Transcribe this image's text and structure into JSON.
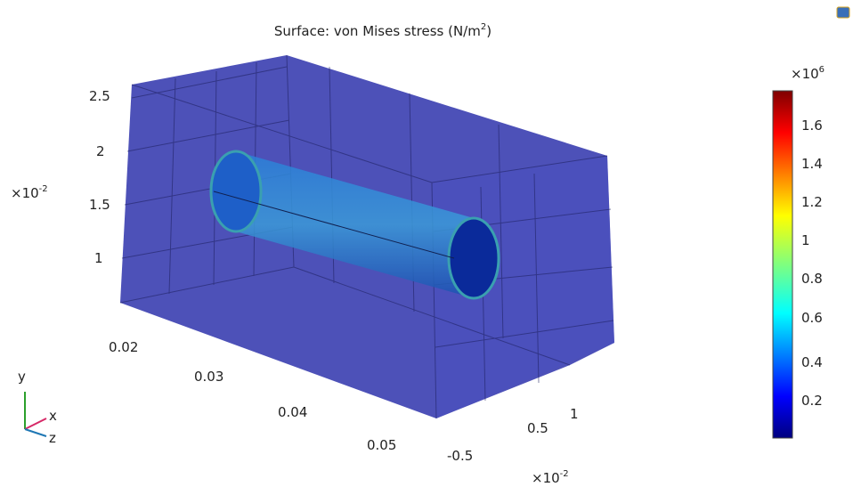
{
  "title": {
    "text": "Surface: von Mises stress (N/m",
    "sup": "2",
    "end": ")"
  },
  "y_axis": {
    "ticks": [
      "2.5",
      "2",
      "1.5",
      "1"
    ],
    "multiplier": "×10",
    "exponent": "-2"
  },
  "x_axis": {
    "ticks": [
      "0.02",
      "0.03",
      "0.04",
      "0.05"
    ]
  },
  "z_axis": {
    "ticks": [
      "-0.5",
      "0.5",
      "1"
    ],
    "multiplier": "×10",
    "exponent": "-2"
  },
  "colorbar": {
    "multiplier": "×10",
    "exponent": "6",
    "ticks": [
      "1.6",
      "1.4",
      "1.2",
      "1",
      "0.8",
      "0.6",
      "0.4",
      "0.2"
    ]
  },
  "triad": {
    "y": "y",
    "x": "x",
    "z": "z"
  }
}
